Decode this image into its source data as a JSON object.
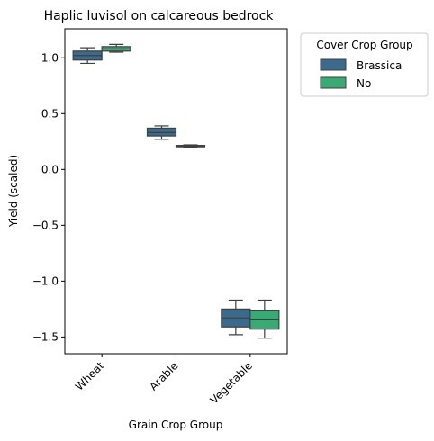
{
  "chart_data": {
    "type": "box",
    "title": "Haplic luvisol on calcareous bedrock",
    "xlabel": "Grain Crop Group",
    "ylabel": "Yield (scaled)",
    "categories": [
      "Wheat",
      "Arable",
      "Vegetable"
    ],
    "ylim": [
      -1.65,
      1.26
    ],
    "yticks": [
      1.0,
      0.5,
      0.0,
      -0.5,
      -1.0,
      -1.5
    ],
    "ytick_labels": [
      "1.0",
      "0.5",
      "0.0",
      "−0.5",
      "−1.0",
      "−1.5"
    ],
    "grid": false,
    "legend": {
      "title": "Cover Crop Group",
      "placement": "outside-upper-right"
    },
    "series": [
      {
        "name": "Brassica",
        "color": "#3b6a8c",
        "boxes": [
          {
            "category": "Wheat",
            "whisker_low": 0.95,
            "q1": 0.98,
            "median": 1.02,
            "q3": 1.06,
            "whisker_high": 1.09
          },
          {
            "category": "Arable",
            "whisker_low": 0.27,
            "q1": 0.3,
            "median": 0.33,
            "q3": 0.37,
            "whisker_high": 0.39
          },
          {
            "category": "Vegetable",
            "whisker_low": -1.48,
            "q1": -1.41,
            "median": -1.33,
            "q3": -1.25,
            "whisker_high": -1.17
          }
        ]
      },
      {
        "name": "No",
        "color": "#3aa973",
        "boxes": [
          {
            "category": "Wheat",
            "whisker_low": 1.05,
            "q1": 1.06,
            "median": 1.08,
            "q3": 1.1,
            "whisker_high": 1.12
          },
          {
            "category": "Arable",
            "whisker_low": 0.2,
            "q1": 0.205,
            "median": 0.21,
            "q3": 0.215,
            "whisker_high": 0.22
          },
          {
            "category": "Vegetable",
            "whisker_low": -1.51,
            "q1": -1.43,
            "median": -1.34,
            "q3": -1.26,
            "whisker_high": -1.17
          }
        ]
      }
    ]
  }
}
